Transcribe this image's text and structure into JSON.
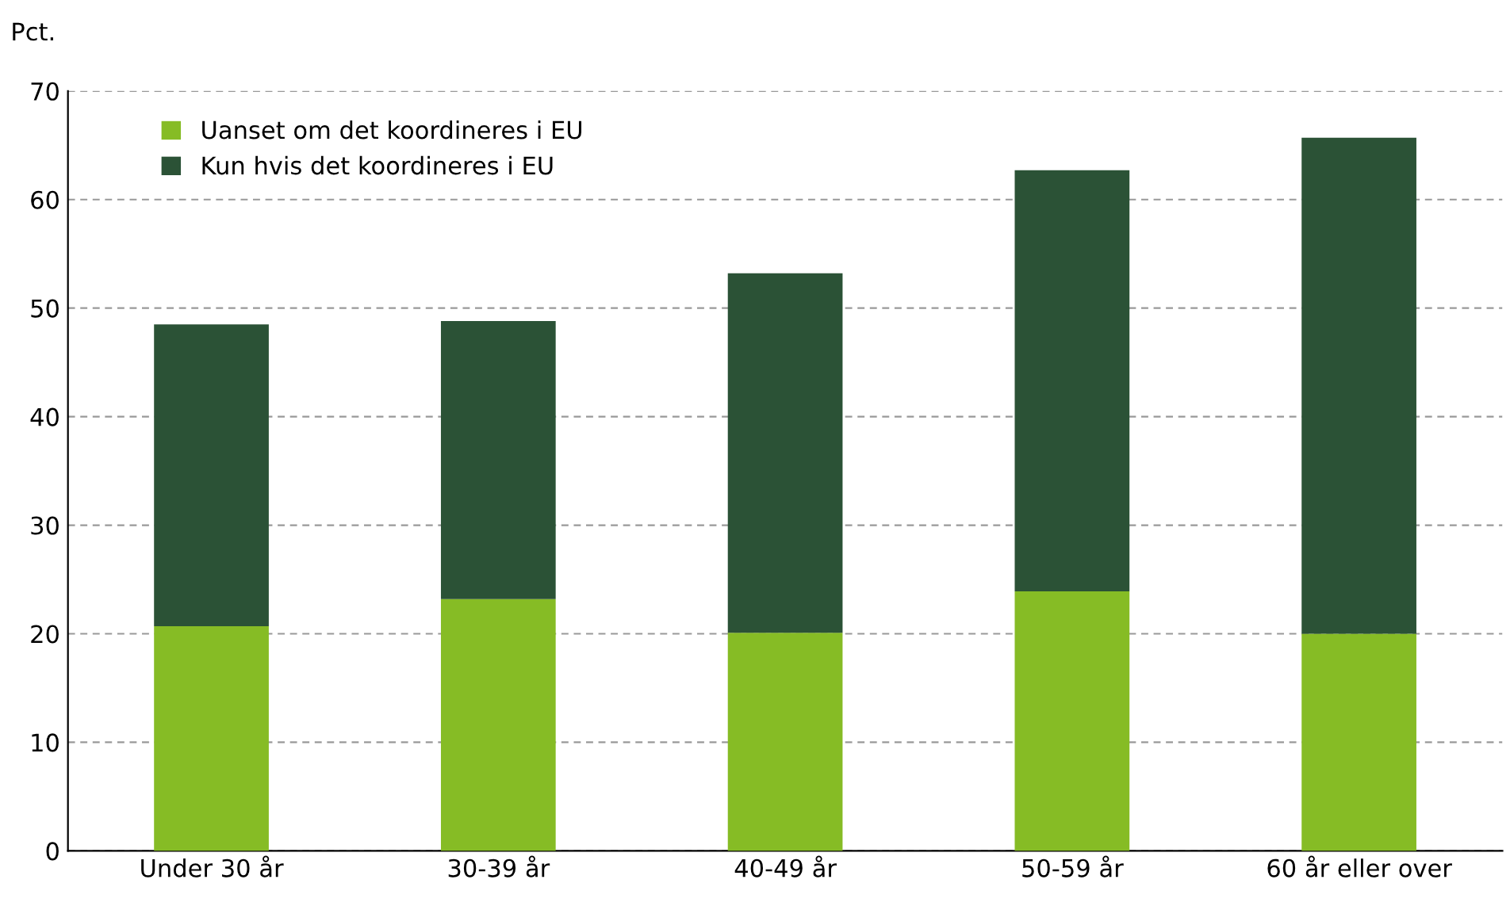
{
  "chart_data": {
    "type": "bar",
    "stacked": true,
    "ylabel": "Pct.",
    "categories": [
      "Under 30 år",
      "30-39 år",
      "40-49 år",
      "50-59 år",
      "60 år eller over"
    ],
    "series": [
      {
        "name": "Uanset om det koordineres i EU",
        "color": "#86bc25",
        "values": [
          20.7,
          23.2,
          20.1,
          23.9,
          20.0
        ]
      },
      {
        "name": "Kun hvis det koordineres i EU",
        "color": "#2b5236",
        "values": [
          27.8,
          25.6,
          33.1,
          38.8,
          45.7
        ]
      }
    ],
    "ylim": [
      0,
      70
    ],
    "yticks": [
      0,
      10,
      20,
      30,
      40,
      50,
      60,
      70
    ],
    "grid": "y",
    "legend": "top left"
  }
}
